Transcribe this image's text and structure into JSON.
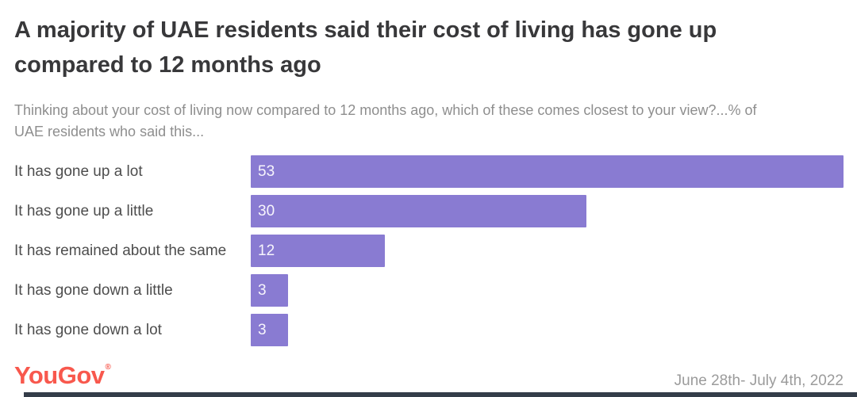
{
  "header": {
    "title_lines": [
      "A majority of UAE residents said their cost of living has gone up",
      "compared to 12 months ago"
    ],
    "subtitle_lines": [
      "Thinking about your cost of living now compared to 12 months ago, which of these comes closest to your view?...% of",
      "UAE residents who said this..."
    ]
  },
  "chart_data": {
    "type": "bar",
    "orientation": "horizontal",
    "title": "A majority of UAE residents said their cost of living has gone up compared to 12 months ago",
    "subtitle": "Thinking about your cost of living now compared to 12 months ago, which of these comes closest to your view?...% of UAE residents who said this...",
    "categories": [
      "It has gone up a lot",
      "It has gone up a little",
      "It has remained about the same",
      "It has gone down a little",
      "It has gone down a lot"
    ],
    "values": [
      53,
      30,
      12,
      3,
      3
    ],
    "xlabel": "",
    "ylabel": "",
    "xlim": [
      0,
      54
    ],
    "grid": false,
    "legend": false,
    "value_labels": "inside-left"
  },
  "footer": {
    "logo_text": "YouGov",
    "logo_mark": "®",
    "date_range": "June 28th- July 4th, 2022"
  },
  "colors": {
    "bar_fill": "#897bd2",
    "value_label": "#f7f5fc",
    "title_text": "#38383a",
    "subtitle_text": "#8e8e8e",
    "category_text": "#4d4d4d",
    "logo_brand": "#f8584d",
    "date_text": "#9b9b9b",
    "scrollbar": "#343d49",
    "background": "#ffffff"
  }
}
